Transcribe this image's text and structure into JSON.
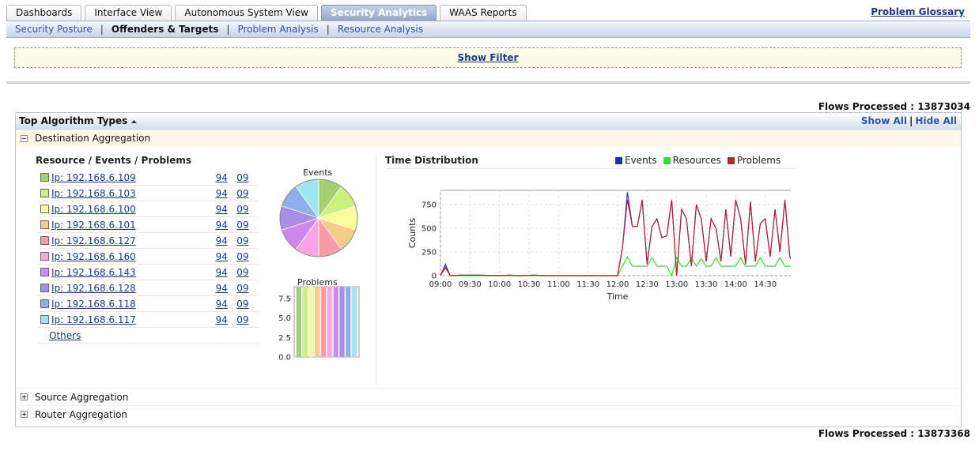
{
  "tabs": [
    {
      "label": "Dashboards",
      "active": false
    },
    {
      "label": "Interface View",
      "active": false
    },
    {
      "label": "Autonomous System View",
      "active": false
    },
    {
      "label": "Security Analytics",
      "active": true
    },
    {
      "label": "WAAS Reports",
      "active": false
    }
  ],
  "glossary_link": "Problem Glossary",
  "subnav": {
    "items": [
      "Security Posture",
      "Offenders & Targets",
      "Problem Analysis",
      "Resource Analysis"
    ],
    "current": "Offenders & Targets",
    "separator": "|"
  },
  "filter": {
    "label": "Show Filter"
  },
  "flows_top": "Flows Processed : 13873034",
  "flows_bottom": "Flows Processed : 13873368",
  "panel": {
    "title": "Top Algorithm Types",
    "title_icon": "sort-asc-icon",
    "show_all": "Show All",
    "separator": "|",
    "hide_all": "Hide All"
  },
  "sections": [
    {
      "label": "Destination Aggregation",
      "expanded": true
    },
    {
      "label": "Source Aggregation",
      "expanded": false
    },
    {
      "label": "Router Aggregation",
      "expanded": false
    }
  ],
  "destination": {
    "list_header": "Resource / Events / Problems",
    "rows": [
      {
        "ip": "Ip: 192.168.6.109",
        "events": "94",
        "problems": "09",
        "color": "#a5cf6f"
      },
      {
        "ip": "Ip: 192.168.6.103",
        "events": "94",
        "problems": "09",
        "color": "#ccf080"
      },
      {
        "ip": "Ip: 192.168.6.100",
        "events": "94",
        "problems": "09",
        "color": "#fafa99"
      },
      {
        "ip": "Ip: 192.168.6.101",
        "events": "94",
        "problems": "09",
        "color": "#f6cb87"
      },
      {
        "ip": "Ip: 192.168.6.127",
        "events": "94",
        "problems": "09",
        "color": "#f59ca6"
      },
      {
        "ip": "Ip: 192.168.6.160",
        "events": "94",
        "problems": "09",
        "color": "#f6a6e4"
      },
      {
        "ip": "Ip: 192.168.6.143",
        "events": "94",
        "problems": "09",
        "color": "#cf86ef"
      },
      {
        "ip": "Ip: 192.168.6.128",
        "events": "94",
        "problems": "09",
        "color": "#a88de6"
      },
      {
        "ip": "Ip: 192.168.6.118",
        "events": "94",
        "problems": "09",
        "color": "#8bafe8"
      },
      {
        "ip": "Ip: 192.168.6.117",
        "events": "94",
        "problems": "09",
        "color": "#a0e4f4"
      }
    ],
    "others_label": "Others"
  },
  "chart_data": [
    {
      "type": "pie",
      "title": "Events",
      "labels": [
        "Ip: 192.168.6.109",
        "Ip: 192.168.6.103",
        "Ip: 192.168.6.100",
        "Ip: 192.168.6.101",
        "Ip: 192.168.6.127",
        "Ip: 192.168.6.160",
        "Ip: 192.168.6.143",
        "Ip: 192.168.6.128",
        "Ip: 192.168.6.118",
        "Ip: 192.168.6.117"
      ],
      "values": [
        94,
        94,
        94,
        94,
        94,
        94,
        94,
        94,
        94,
        94
      ],
      "colors": [
        "#a5cf6f",
        "#ccf080",
        "#fafa99",
        "#f6cb87",
        "#f59ca6",
        "#f6a6e4",
        "#cf86ef",
        "#a88de6",
        "#8bafe8",
        "#a0e4f4"
      ]
    },
    {
      "type": "bar",
      "title": "Problems",
      "categories": [
        "Ip: 192.168.6.109",
        "Ip: 192.168.6.103",
        "Ip: 192.168.6.100",
        "Ip: 192.168.6.101",
        "Ip: 192.168.6.127",
        "Ip: 192.168.6.160",
        "Ip: 192.168.6.143",
        "Ip: 192.168.6.128",
        "Ip: 192.168.6.118",
        "Ip: 192.168.6.117"
      ],
      "values": [
        9,
        9,
        9,
        9,
        9,
        9,
        9,
        9,
        9,
        9
      ],
      "colors": [
        "#a5cf6f",
        "#ccf080",
        "#fafa99",
        "#f6cb87",
        "#f59ca6",
        "#f6a6e4",
        "#cf86ef",
        "#a88de6",
        "#8bafe8",
        "#a0e4f4"
      ],
      "ylim": [
        0,
        9
      ],
      "yticks": [
        "0.0",
        "2.5",
        "5.0",
        "7.5"
      ]
    },
    {
      "type": "line",
      "title": "Time Distribution",
      "xlabel": "Time",
      "ylabel": "Counts",
      "xlim": [
        "09:00",
        "14:55"
      ],
      "ylim": [
        0,
        900
      ],
      "xticks": [
        "09:00",
        "09:30",
        "10:00",
        "10:30",
        "11:00",
        "11:30",
        "12:00",
        "12:30",
        "13:00",
        "13:30",
        "14:00",
        "14:30"
      ],
      "yticks": [
        "0",
        "250",
        "500",
        "750"
      ],
      "grid": true,
      "legend_position": "top",
      "series": [
        {
          "name": "Events",
          "color": "#1f2fb8",
          "points": [
            [
              "09:00",
              0
            ],
            [
              "09:05",
              120
            ],
            [
              "09:10",
              0
            ],
            [
              "09:20",
              5
            ],
            [
              "09:40",
              5
            ],
            [
              "10:00",
              0
            ],
            [
              "10:10",
              5
            ],
            [
              "10:20",
              0
            ],
            [
              "10:35",
              5
            ],
            [
              "10:45",
              0
            ],
            [
              "12:00",
              0
            ],
            [
              "12:05",
              300
            ],
            [
              "12:10",
              880
            ],
            [
              "12:15",
              520
            ],
            [
              "12:20",
              520
            ],
            [
              "12:25",
              800
            ],
            [
              "12:30",
              120
            ],
            [
              "12:35",
              520
            ],
            [
              "12:40",
              600
            ],
            [
              "12:45",
              400
            ],
            [
              "12:50",
              420
            ],
            [
              "12:55",
              800
            ],
            [
              "13:00",
              0
            ],
            [
              "13:05",
              700
            ],
            [
              "13:10",
              600
            ],
            [
              "13:15",
              100
            ],
            [
              "13:20",
              750
            ],
            [
              "13:25",
              600
            ],
            [
              "13:30",
              150
            ],
            [
              "13:35",
              600
            ],
            [
              "13:40",
              500
            ],
            [
              "13:45",
              150
            ],
            [
              "13:50",
              700
            ],
            [
              "13:55",
              200
            ],
            [
              "14:00",
              800
            ],
            [
              "14:05",
              600
            ],
            [
              "14:10",
              120
            ],
            [
              "14:15",
              780
            ],
            [
              "14:20",
              150
            ],
            [
              "14:25",
              550
            ],
            [
              "14:30",
              600
            ],
            [
              "14:35",
              200
            ],
            [
              "14:40",
              700
            ],
            [
              "14:45",
              250
            ],
            [
              "14:50",
              800
            ],
            [
              "14:55",
              200
            ],
            [
              "15:00",
              100
            ]
          ]
        },
        {
          "name": "Resources",
          "color": "#33dd33",
          "points": [
            [
              "09:00",
              0
            ],
            [
              "09:05",
              80
            ],
            [
              "09:10",
              0
            ],
            [
              "12:00",
              0
            ],
            [
              "12:05",
              100
            ],
            [
              "12:10",
              200
            ],
            [
              "12:15",
              100
            ],
            [
              "12:25",
              100
            ],
            [
              "12:30",
              100
            ],
            [
              "12:35",
              190
            ],
            [
              "12:40",
              100
            ],
            [
              "12:50",
              100
            ],
            [
              "12:55",
              0
            ],
            [
              "13:00",
              190
            ],
            [
              "13:05",
              100
            ],
            [
              "13:10",
              100
            ],
            [
              "13:15",
              190
            ],
            [
              "13:20",
              100
            ],
            [
              "13:25",
              180
            ],
            [
              "13:30",
              100
            ],
            [
              "13:35",
              100
            ],
            [
              "13:40",
              190
            ],
            [
              "13:45",
              100
            ],
            [
              "14:00",
              100
            ],
            [
              "14:05",
              190
            ],
            [
              "14:10",
              100
            ],
            [
              "14:20",
              100
            ],
            [
              "14:25",
              190
            ],
            [
              "14:30",
              100
            ],
            [
              "14:40",
              100
            ],
            [
              "14:45",
              190
            ],
            [
              "14:50",
              100
            ],
            [
              "15:00",
              100
            ]
          ]
        },
        {
          "name": "Problems",
          "color": "#b3242e",
          "points": [
            [
              "09:00",
              0
            ],
            [
              "09:05",
              90
            ],
            [
              "09:10",
              0
            ],
            [
              "09:20",
              5
            ],
            [
              "09:40",
              5
            ],
            [
              "10:00",
              0
            ],
            [
              "10:10",
              5
            ],
            [
              "10:20",
              0
            ],
            [
              "10:35",
              5
            ],
            [
              "10:45",
              0
            ],
            [
              "12:00",
              0
            ],
            [
              "12:05",
              300
            ],
            [
              "12:10",
              800
            ],
            [
              "12:15",
              520
            ],
            [
              "12:20",
              520
            ],
            [
              "12:25",
              800
            ],
            [
              "12:30",
              120
            ],
            [
              "12:35",
              520
            ],
            [
              "12:40",
              600
            ],
            [
              "12:45",
              400
            ],
            [
              "12:50",
              420
            ],
            [
              "12:55",
              800
            ],
            [
              "13:00",
              0
            ],
            [
              "13:05",
              700
            ],
            [
              "13:10",
              600
            ],
            [
              "13:15",
              100
            ],
            [
              "13:20",
              750
            ],
            [
              "13:25",
              600
            ],
            [
              "13:30",
              150
            ],
            [
              "13:35",
              600
            ],
            [
              "13:40",
              500
            ],
            [
              "13:45",
              150
            ],
            [
              "13:50",
              700
            ],
            [
              "13:55",
              200
            ],
            [
              "14:00",
              800
            ],
            [
              "14:05",
              600
            ],
            [
              "14:10",
              120
            ],
            [
              "14:15",
              780
            ],
            [
              "14:20",
              150
            ],
            [
              "14:25",
              550
            ],
            [
              "14:30",
              600
            ],
            [
              "14:35",
              200
            ],
            [
              "14:40",
              700
            ],
            [
              "14:45",
              250
            ],
            [
              "14:50",
              800
            ],
            [
              "14:55",
              200
            ],
            [
              "15:00",
              100
            ]
          ]
        }
      ]
    }
  ]
}
